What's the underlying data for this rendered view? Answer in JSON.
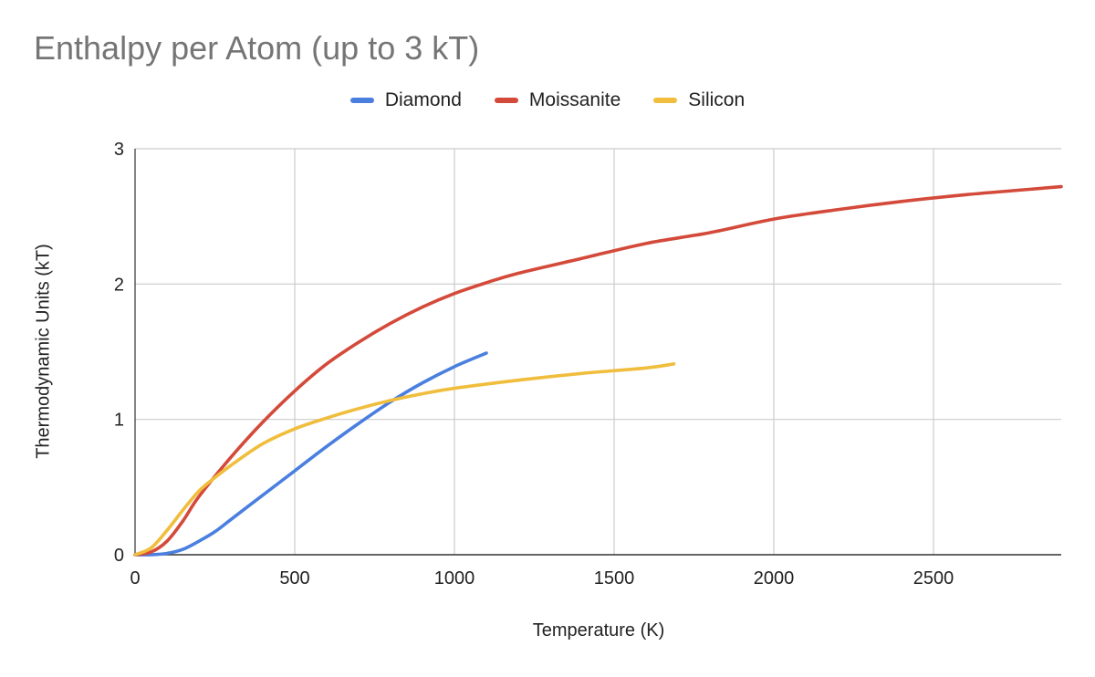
{
  "chart_data": {
    "type": "line",
    "title": "Enthalpy per Atom (up to 3 kT)",
    "xlabel": "Temperature (K)",
    "ylabel": "Thermodynamic Units (kT)",
    "xlim": [
      0,
      2900
    ],
    "ylim": [
      0,
      3
    ],
    "xticks": [
      0,
      500,
      1000,
      1500,
      2000,
      2500
    ],
    "yticks": [
      0,
      1,
      2,
      3
    ],
    "grid": true,
    "legend_position": "top",
    "series": [
      {
        "name": "Diamond",
        "color": "#4a7fe0",
        "x": [
          0,
          50,
          100,
          150,
          200,
          250,
          300,
          400,
          500,
          600,
          700,
          800,
          900,
          1000,
          1100
        ],
        "y": [
          0,
          0.0,
          0.01,
          0.04,
          0.1,
          0.17,
          0.26,
          0.44,
          0.62,
          0.8,
          0.97,
          1.13,
          1.27,
          1.39,
          1.49
        ]
      },
      {
        "name": "Moissanite",
        "color": "#d44a3a",
        "x": [
          0,
          50,
          100,
          150,
          200,
          300,
          400,
          500,
          600,
          700,
          800,
          900,
          1000,
          1100,
          1200,
          1400,
          1600,
          1800,
          2000,
          2200,
          2400,
          2600,
          2800,
          2900
        ],
        "y": [
          0,
          0.02,
          0.1,
          0.25,
          0.43,
          0.72,
          0.98,
          1.21,
          1.41,
          1.57,
          1.71,
          1.83,
          1.93,
          2.01,
          2.08,
          2.19,
          2.3,
          2.38,
          2.48,
          2.55,
          2.61,
          2.66,
          2.7,
          2.72
        ]
      },
      {
        "name": "Silicon",
        "color": "#f0bd3c",
        "x": [
          0,
          50,
          100,
          150,
          200,
          250,
          300,
          400,
          500,
          600,
          700,
          800,
          900,
          1000,
          1200,
          1400,
          1600,
          1687
        ],
        "y": [
          0,
          0.05,
          0.18,
          0.33,
          0.47,
          0.57,
          0.66,
          0.82,
          0.93,
          1.01,
          1.08,
          1.14,
          1.19,
          1.23,
          1.29,
          1.34,
          1.38,
          1.41
        ]
      }
    ]
  }
}
